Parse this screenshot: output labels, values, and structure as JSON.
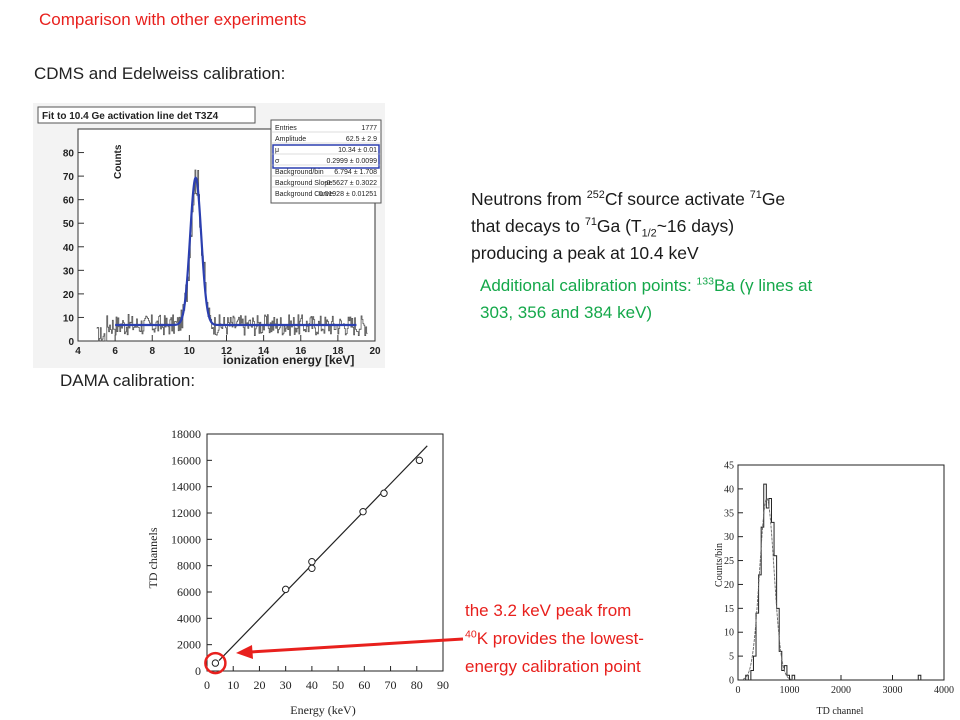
{
  "header": {
    "title": "Comparison with other experiments"
  },
  "sections": {
    "cdms_label": "CDMS and Edelweiss calibration:",
    "dama_label": "DAMA calibration:"
  },
  "neutron_text": {
    "l1a": "Neutrons from ",
    "l1s1": "252",
    "l1b": "Cf source activate ",
    "l1s2": "71",
    "l1c": "Ge",
    "l2a": "that decays to ",
    "l2s": "71",
    "l2b": "Ga (T",
    "l2sub": "1/2",
    "l2c": "~16 days)",
    "l3": "producing a peak at 10.4 keV"
  },
  "ba_text": {
    "a": "Additional calibration points: ",
    "s": "133",
    "b": "Ba (γ lines at",
    "c": "303, 356 and 384 keV)"
  },
  "k40_text": {
    "l1": "the 3.2 keV peak from",
    "s": "40",
    "l2": "K provides the lowest-",
    "l3": "energy calibration point"
  },
  "colors": {
    "accent_red": "#e8201d",
    "green": "#14a84a",
    "fit_blue": "#2b3fb0"
  },
  "chart_data": [
    {
      "type": "histogram",
      "title": "Fit to 10.4 Ge activation line det T3Z4",
      "xlabel": "ionization energy [keV]",
      "ylabel": "Counts",
      "xlim": [
        4,
        20
      ],
      "ylim": [
        0,
        90
      ],
      "xticks": [
        "4",
        "6",
        "8",
        "10",
        "12",
        "14",
        "16",
        "18",
        "20"
      ],
      "yticks": [
        "0",
        "10",
        "20",
        "30",
        "40",
        "50",
        "60",
        "70",
        "80"
      ],
      "stats": [
        [
          "Entries",
          "1777"
        ],
        [
          "Amplitude",
          "62.5 ± 2.9"
        ],
        [
          "μ",
          "10.34 ± 0.01"
        ],
        [
          "σ",
          "0.2999 ± 0.0099"
        ],
        [
          "Background/bin",
          "6.794 ± 1.708"
        ],
        [
          "Background Slope",
          "-0.5627 ± 0.3022"
        ],
        [
          "Background Curve",
          "0.01928 ± 0.01251"
        ]
      ],
      "fit": {
        "amplitude": 62.5,
        "mu": 10.34,
        "sigma": 0.2999,
        "background": 6.794,
        "range": [
          6,
          19
        ]
      }
    },
    {
      "type": "scatter",
      "xlabel": "Energy (keV)",
      "ylabel": "TD channels",
      "xlim": [
        0,
        90
      ],
      "ylim": [
        0,
        18000
      ],
      "xticks": [
        "0",
        "10",
        "20",
        "30",
        "40",
        "50",
        "60",
        "70",
        "80",
        "90"
      ],
      "yticks": [
        "0",
        "2000",
        "4000",
        "6000",
        "8000",
        "10000",
        "12000",
        "14000",
        "16000",
        "18000"
      ],
      "points": [
        [
          3.2,
          600
        ],
        [
          30,
          6200
        ],
        [
          40,
          7800
        ],
        [
          40,
          8300
        ],
        [
          59.5,
          12100
        ],
        [
          67.5,
          13500
        ],
        [
          81,
          16000
        ]
      ],
      "fit_line": [
        [
          0,
          -150
        ],
        [
          84,
          17100
        ]
      ]
    },
    {
      "type": "histogram",
      "xlabel": "TD channel",
      "ylabel": "Counts/bin",
      "xlim": [
        0,
        4000
      ],
      "ylim": [
        0,
        45
      ],
      "xticks": [
        "0",
        "1000",
        "2000",
        "3000",
        "4000"
      ],
      "yticks": [
        "0",
        "5",
        "10",
        "15",
        "20",
        "25",
        "30",
        "35",
        "40",
        "45"
      ],
      "bins": [
        [
          100,
          0
        ],
        [
          150,
          1
        ],
        [
          200,
          0
        ],
        [
          250,
          2
        ],
        [
          300,
          5
        ],
        [
          350,
          14
        ],
        [
          400,
          22
        ],
        [
          450,
          32
        ],
        [
          500,
          41
        ],
        [
          550,
          36
        ],
        [
          600,
          38
        ],
        [
          650,
          33
        ],
        [
          700,
          26
        ],
        [
          750,
          15
        ],
        [
          800,
          6
        ],
        [
          850,
          2
        ],
        [
          900,
          3
        ],
        [
          950,
          1
        ],
        [
          1000,
          0
        ],
        [
          1050,
          1
        ],
        [
          1100,
          0
        ],
        [
          3500,
          1
        ],
        [
          3550,
          0
        ]
      ],
      "fit": {
        "amplitude": 38,
        "mu": 560,
        "sigma": 140
      }
    }
  ]
}
